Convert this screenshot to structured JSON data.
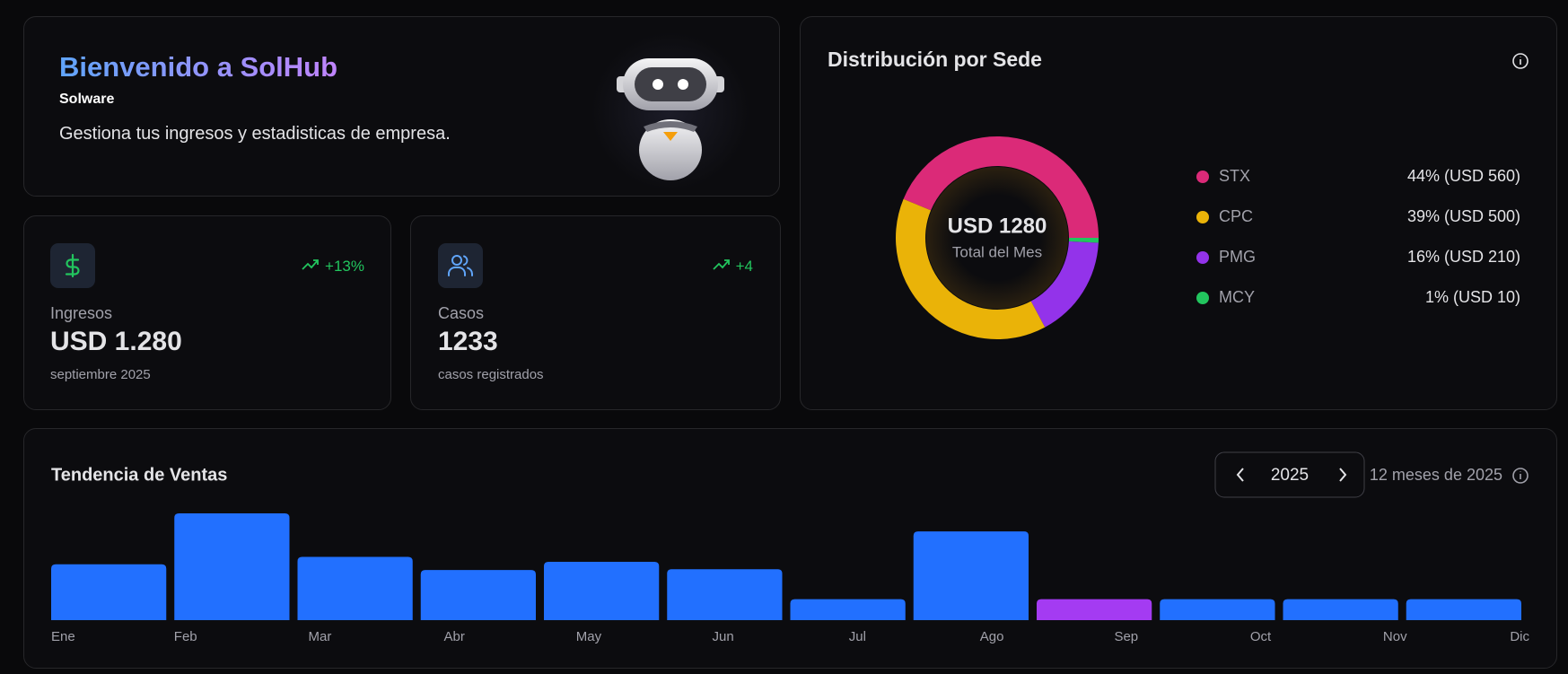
{
  "welcome": {
    "title": "Bienvenido a SolHub",
    "company": "Solware",
    "subtitle": "Gestiona tus ingresos y estadisticas de empresa."
  },
  "stats": [
    {
      "change": "+13%",
      "label": "Ingresos",
      "value": "USD 1.280",
      "note": "septiembre 2025"
    },
    {
      "change": "+4",
      "label": "Casos",
      "value": 1233,
      "note": "casos registrados"
    }
  ],
  "chart_data": [
    {
      "type": "pie",
      "title": "Distribución por Sede",
      "center_value": "USD 1280",
      "center_label": "Total del Mes",
      "categories": [
        "STX",
        "CPC",
        "PMG",
        "MCY"
      ],
      "values": [
        560,
        500,
        210,
        10
      ],
      "value_labels": [
        "44% (USD 560)",
        "39% (USD 500)",
        "16% (USD 210)",
        "1% (USD 10)"
      ],
      "colors": [
        "#db2a78",
        "#eab308",
        "#9333ea",
        "#22c55e"
      ],
      "legend": "right"
    },
    {
      "type": "bar",
      "title": "Tendencia de Ventas",
      "year": 2025,
      "subtitle": "12 meses de 2025",
      "categories": [
        "Ene",
        "Feb",
        "Mar",
        "Abr",
        "May",
        "Jun",
        "Jul",
        "Ago",
        "Sep",
        "Oct",
        "Nov",
        "Dic"
      ],
      "values": [
        3400,
        6500,
        3850,
        3050,
        3550,
        3100,
        1280,
        5400,
        1280,
        1280,
        1280,
        1280
      ],
      "colors": [
        "#2270ff",
        "#2270ff",
        "#2270ff",
        "#2270ff",
        "#2270ff",
        "#2270ff",
        "#2270ff",
        "#2270ff",
        "#a43bf2",
        "#2270ff",
        "#2270ff",
        "#2270ff"
      ],
      "ylim": [
        0,
        6500
      ]
    }
  ]
}
